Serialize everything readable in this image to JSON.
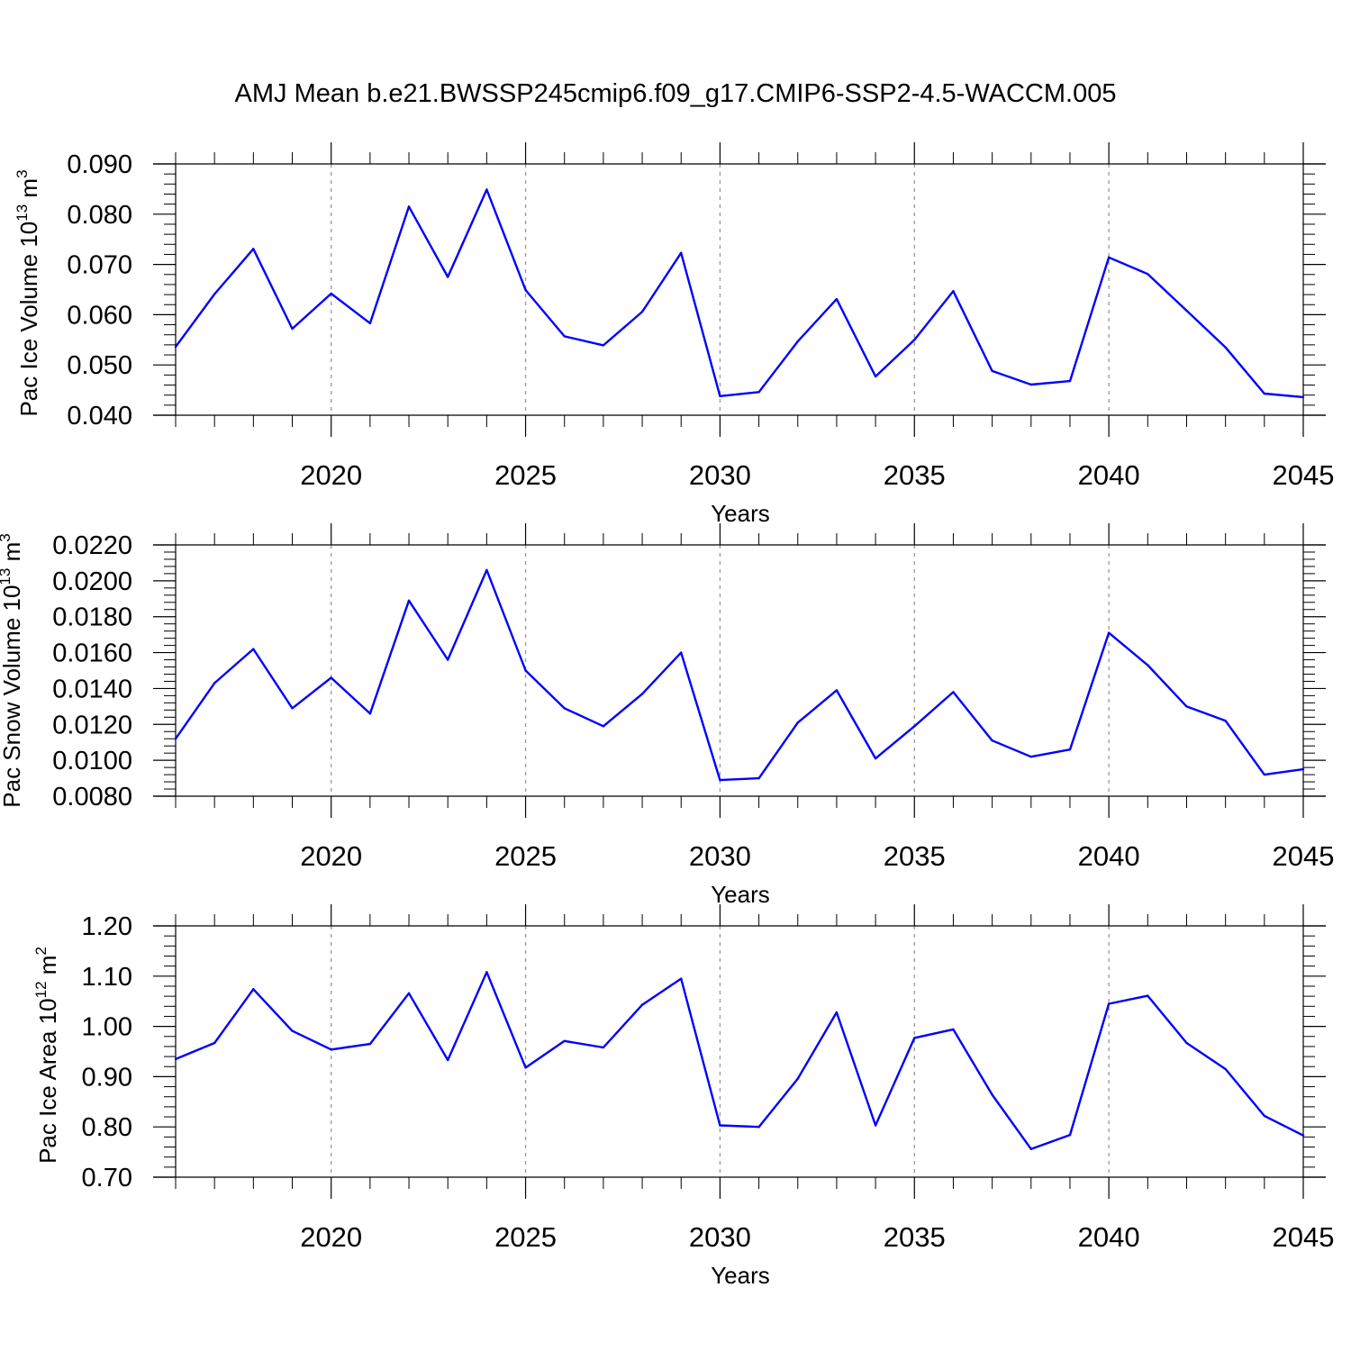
{
  "title": "AMJ Mean b.e21.BWSSP245cmip6.f09_g17.CMIP6-SSP2-4.5-WACCM.005",
  "colors": {
    "line": "#0000ff",
    "axis": "#000000",
    "grid": "#999999"
  },
  "chart_data": [
    {
      "type": "line",
      "ylabel": "Pac Ice Volume 10",
      "ylabel_exp": "13",
      "ylabel_unit": " m",
      "ylabel_unit_exp": "3",
      "xlabel": "Years",
      "xlim": [
        2016,
        2045
      ],
      "ylim": [
        0.04,
        0.09
      ],
      "yticks": [
        "0.040",
        "0.050",
        "0.060",
        "0.070",
        "0.080",
        "0.090"
      ],
      "xticks": [
        "2020",
        "2025",
        "2030",
        "2035",
        "2040",
        "2045"
      ],
      "grid": "dashed vertical at major x ticks",
      "x": [
        2016,
        2017,
        2018,
        2019,
        2020,
        2021,
        2022,
        2023,
        2024,
        2025,
        2026,
        2027,
        2028,
        2029,
        2030,
        2031,
        2032,
        2033,
        2034,
        2035,
        2036,
        2037,
        2038,
        2039,
        2040,
        2041,
        2042,
        2043,
        2044,
        2045
      ],
      "values": [
        0.0536,
        0.0641,
        0.0731,
        0.0572,
        0.0642,
        0.0583,
        0.0815,
        0.0675,
        0.0849,
        0.0649,
        0.0557,
        0.0539,
        0.0606,
        0.0723,
        0.0438,
        0.0446,
        0.0547,
        0.0631,
        0.0477,
        0.055,
        0.0647,
        0.0488,
        0.0461,
        0.0468,
        0.0714,
        0.0681,
        0.0608,
        0.0535,
        0.0443,
        0.0436
      ]
    },
    {
      "type": "line",
      "ylabel": "Pac Snow Volume 10",
      "ylabel_exp": "13",
      "ylabel_unit": " m",
      "ylabel_unit_exp": "3",
      "xlabel": "Years",
      "xlim": [
        2016,
        2045
      ],
      "ylim": [
        0.008,
        0.022
      ],
      "yticks": [
        "0.0080",
        "0.0100",
        "0.0120",
        "0.0140",
        "0.0160",
        "0.0180",
        "0.0200",
        "0.0220"
      ],
      "xticks": [
        "2020",
        "2025",
        "2030",
        "2035",
        "2040",
        "2045"
      ],
      "grid": "dashed vertical at major x ticks",
      "x": [
        2016,
        2017,
        2018,
        2019,
        2020,
        2021,
        2022,
        2023,
        2024,
        2025,
        2026,
        2027,
        2028,
        2029,
        2030,
        2031,
        2032,
        2033,
        2034,
        2035,
        2036,
        2037,
        2038,
        2039,
        2040,
        2041,
        2042,
        2043,
        2044,
        2045
      ],
      "values": [
        0.0112,
        0.0143,
        0.0162,
        0.0129,
        0.0146,
        0.0126,
        0.0189,
        0.0156,
        0.0206,
        0.015,
        0.0129,
        0.0119,
        0.0137,
        0.016,
        0.0089,
        0.009,
        0.0121,
        0.0139,
        0.0101,
        0.0119,
        0.0138,
        0.0111,
        0.0102,
        0.0106,
        0.0171,
        0.0153,
        0.013,
        0.0122,
        0.0092,
        0.0095
      ]
    },
    {
      "type": "line",
      "ylabel": "Pac Ice Area 10",
      "ylabel_exp": "12",
      "ylabel_unit": " m",
      "ylabel_unit_exp": "2",
      "xlabel": "Years",
      "xlim": [
        2016,
        2045
      ],
      "ylim": [
        0.7,
        1.2
      ],
      "yticks": [
        "0.70",
        "0.80",
        "0.90",
        "1.00",
        "1.10",
        "1.20"
      ],
      "xticks": [
        "2020",
        "2025",
        "2030",
        "2035",
        "2040",
        "2045"
      ],
      "grid": "dashed vertical at major x ticks",
      "x": [
        2016,
        2017,
        2018,
        2019,
        2020,
        2021,
        2022,
        2023,
        2024,
        2025,
        2026,
        2027,
        2028,
        2029,
        2030,
        2031,
        2032,
        2033,
        2034,
        2035,
        2036,
        2037,
        2038,
        2039,
        2040,
        2041,
        2042,
        2043,
        2044,
        2045
      ],
      "values": [
        0.935,
        0.967,
        1.074,
        0.991,
        0.954,
        0.965,
        1.066,
        0.933,
        1.108,
        0.918,
        0.971,
        0.958,
        1.043,
        1.095,
        0.803,
        0.8,
        0.896,
        1.028,
        0.803,
        0.977,
        0.994,
        0.864,
        0.756,
        0.784,
        1.045,
        1.061,
        0.967,
        0.915,
        0.822,
        0.783
      ]
    }
  ]
}
